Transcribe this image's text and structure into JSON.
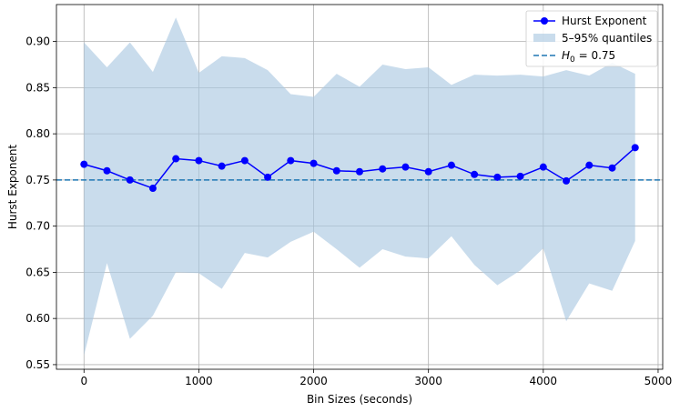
{
  "chart_data": {
    "type": "line",
    "xlabel": "Bin Sizes (seconds)",
    "ylabel": "Hurst Exponent",
    "xlim": [
      -240,
      5040
    ],
    "ylim": [
      0.545,
      0.94
    ],
    "x_ticks": [
      0,
      1000,
      2000,
      3000,
      4000,
      5000
    ],
    "x_tick_labels": [
      "0",
      "1000",
      "2000",
      "3000",
      "4000",
      "5000"
    ],
    "y_ticks": [
      0.55,
      0.6,
      0.65,
      0.7,
      0.75,
      0.8,
      0.85,
      0.9
    ],
    "y_tick_labels": [
      "0.55",
      "0.60",
      "0.65",
      "0.70",
      "0.75",
      "0.80",
      "0.85",
      "0.90"
    ],
    "grid": true,
    "legend_position": "top-right",
    "x": [
      0,
      200,
      400,
      600,
      800,
      1000,
      1200,
      1400,
      1600,
      1800,
      2000,
      2200,
      2400,
      2600,
      2800,
      3000,
      3200,
      3400,
      3600,
      3800,
      4000,
      4200,
      4400,
      4600,
      4800
    ],
    "series": [
      {
        "name": "Hurst Exponent",
        "type": "line-marker",
        "color": "#0000ff",
        "values": [
          0.767,
          0.76,
          0.75,
          0.741,
          0.773,
          0.771,
          0.765,
          0.771,
          0.753,
          0.771,
          0.768,
          0.76,
          0.759,
          0.762,
          0.764,
          0.759,
          0.766,
          0.756,
          0.753,
          0.754,
          0.764,
          0.749,
          0.766,
          0.763,
          0.785
        ]
      },
      {
        "name": "5–95% quantiles",
        "type": "band",
        "color": "#a8c7e0",
        "lower": [
          0.56,
          0.66,
          0.578,
          0.603,
          0.65,
          0.649,
          0.632,
          0.671,
          0.666,
          0.683,
          0.694,
          0.675,
          0.655,
          0.675,
          0.667,
          0.665,
          0.689,
          0.658,
          0.636,
          0.652,
          0.676,
          0.597,
          0.638,
          0.63,
          0.684
        ],
        "upper": [
          0.899,
          0.872,
          0.899,
          0.867,
          0.926,
          0.866,
          0.884,
          0.882,
          0.869,
          0.843,
          0.84,
          0.865,
          0.851,
          0.875,
          0.87,
          0.872,
          0.853,
          0.864,
          0.863,
          0.864,
          0.862,
          0.869,
          0.863,
          0.877,
          0.865
        ]
      }
    ],
    "reference_line": {
      "value": 0.75,
      "legend_prefix": "H",
      "legend_sub": "0",
      "legend_suffix": " = 0.75",
      "color": "#1f77b4",
      "style": "dashed"
    }
  }
}
